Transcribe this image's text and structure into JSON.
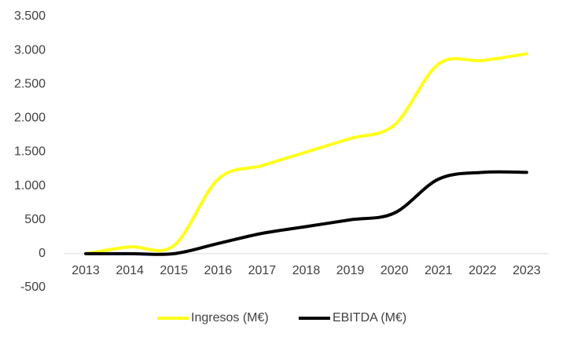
{
  "chart_data": {
    "type": "line",
    "categories": [
      "2013",
      "2014",
      "2015",
      "2016",
      "2017",
      "2018",
      "2019",
      "2020",
      "2021",
      "2022",
      "2023"
    ],
    "series": [
      {
        "name": "Ingresos (M€)",
        "color": "#ffff1a",
        "values": [
          0,
          100,
          120,
          1100,
          1300,
          1500,
          1700,
          1900,
          2800,
          2850,
          2950
        ]
      },
      {
        "name": "EBITDA (M€)",
        "color": "#000000",
        "values": [
          0,
          0,
          0,
          150,
          300,
          400,
          500,
          600,
          1100,
          1200,
          1200
        ]
      }
    ],
    "ylim": [
      -500,
      3500
    ],
    "yticks": [
      -500,
      0,
      500,
      {
        "value": 1000,
        "label": "1.000"
      },
      {
        "value": 1500,
        "label": "1.500"
      },
      {
        "value": 2000,
        "label": "2.000"
      },
      {
        "value": 2500,
        "label": "2.500"
      },
      {
        "value": 3000,
        "label": "3.000"
      },
      {
        "value": 3500,
        "label": "3.500"
      }
    ],
    "legend": "bottom"
  }
}
